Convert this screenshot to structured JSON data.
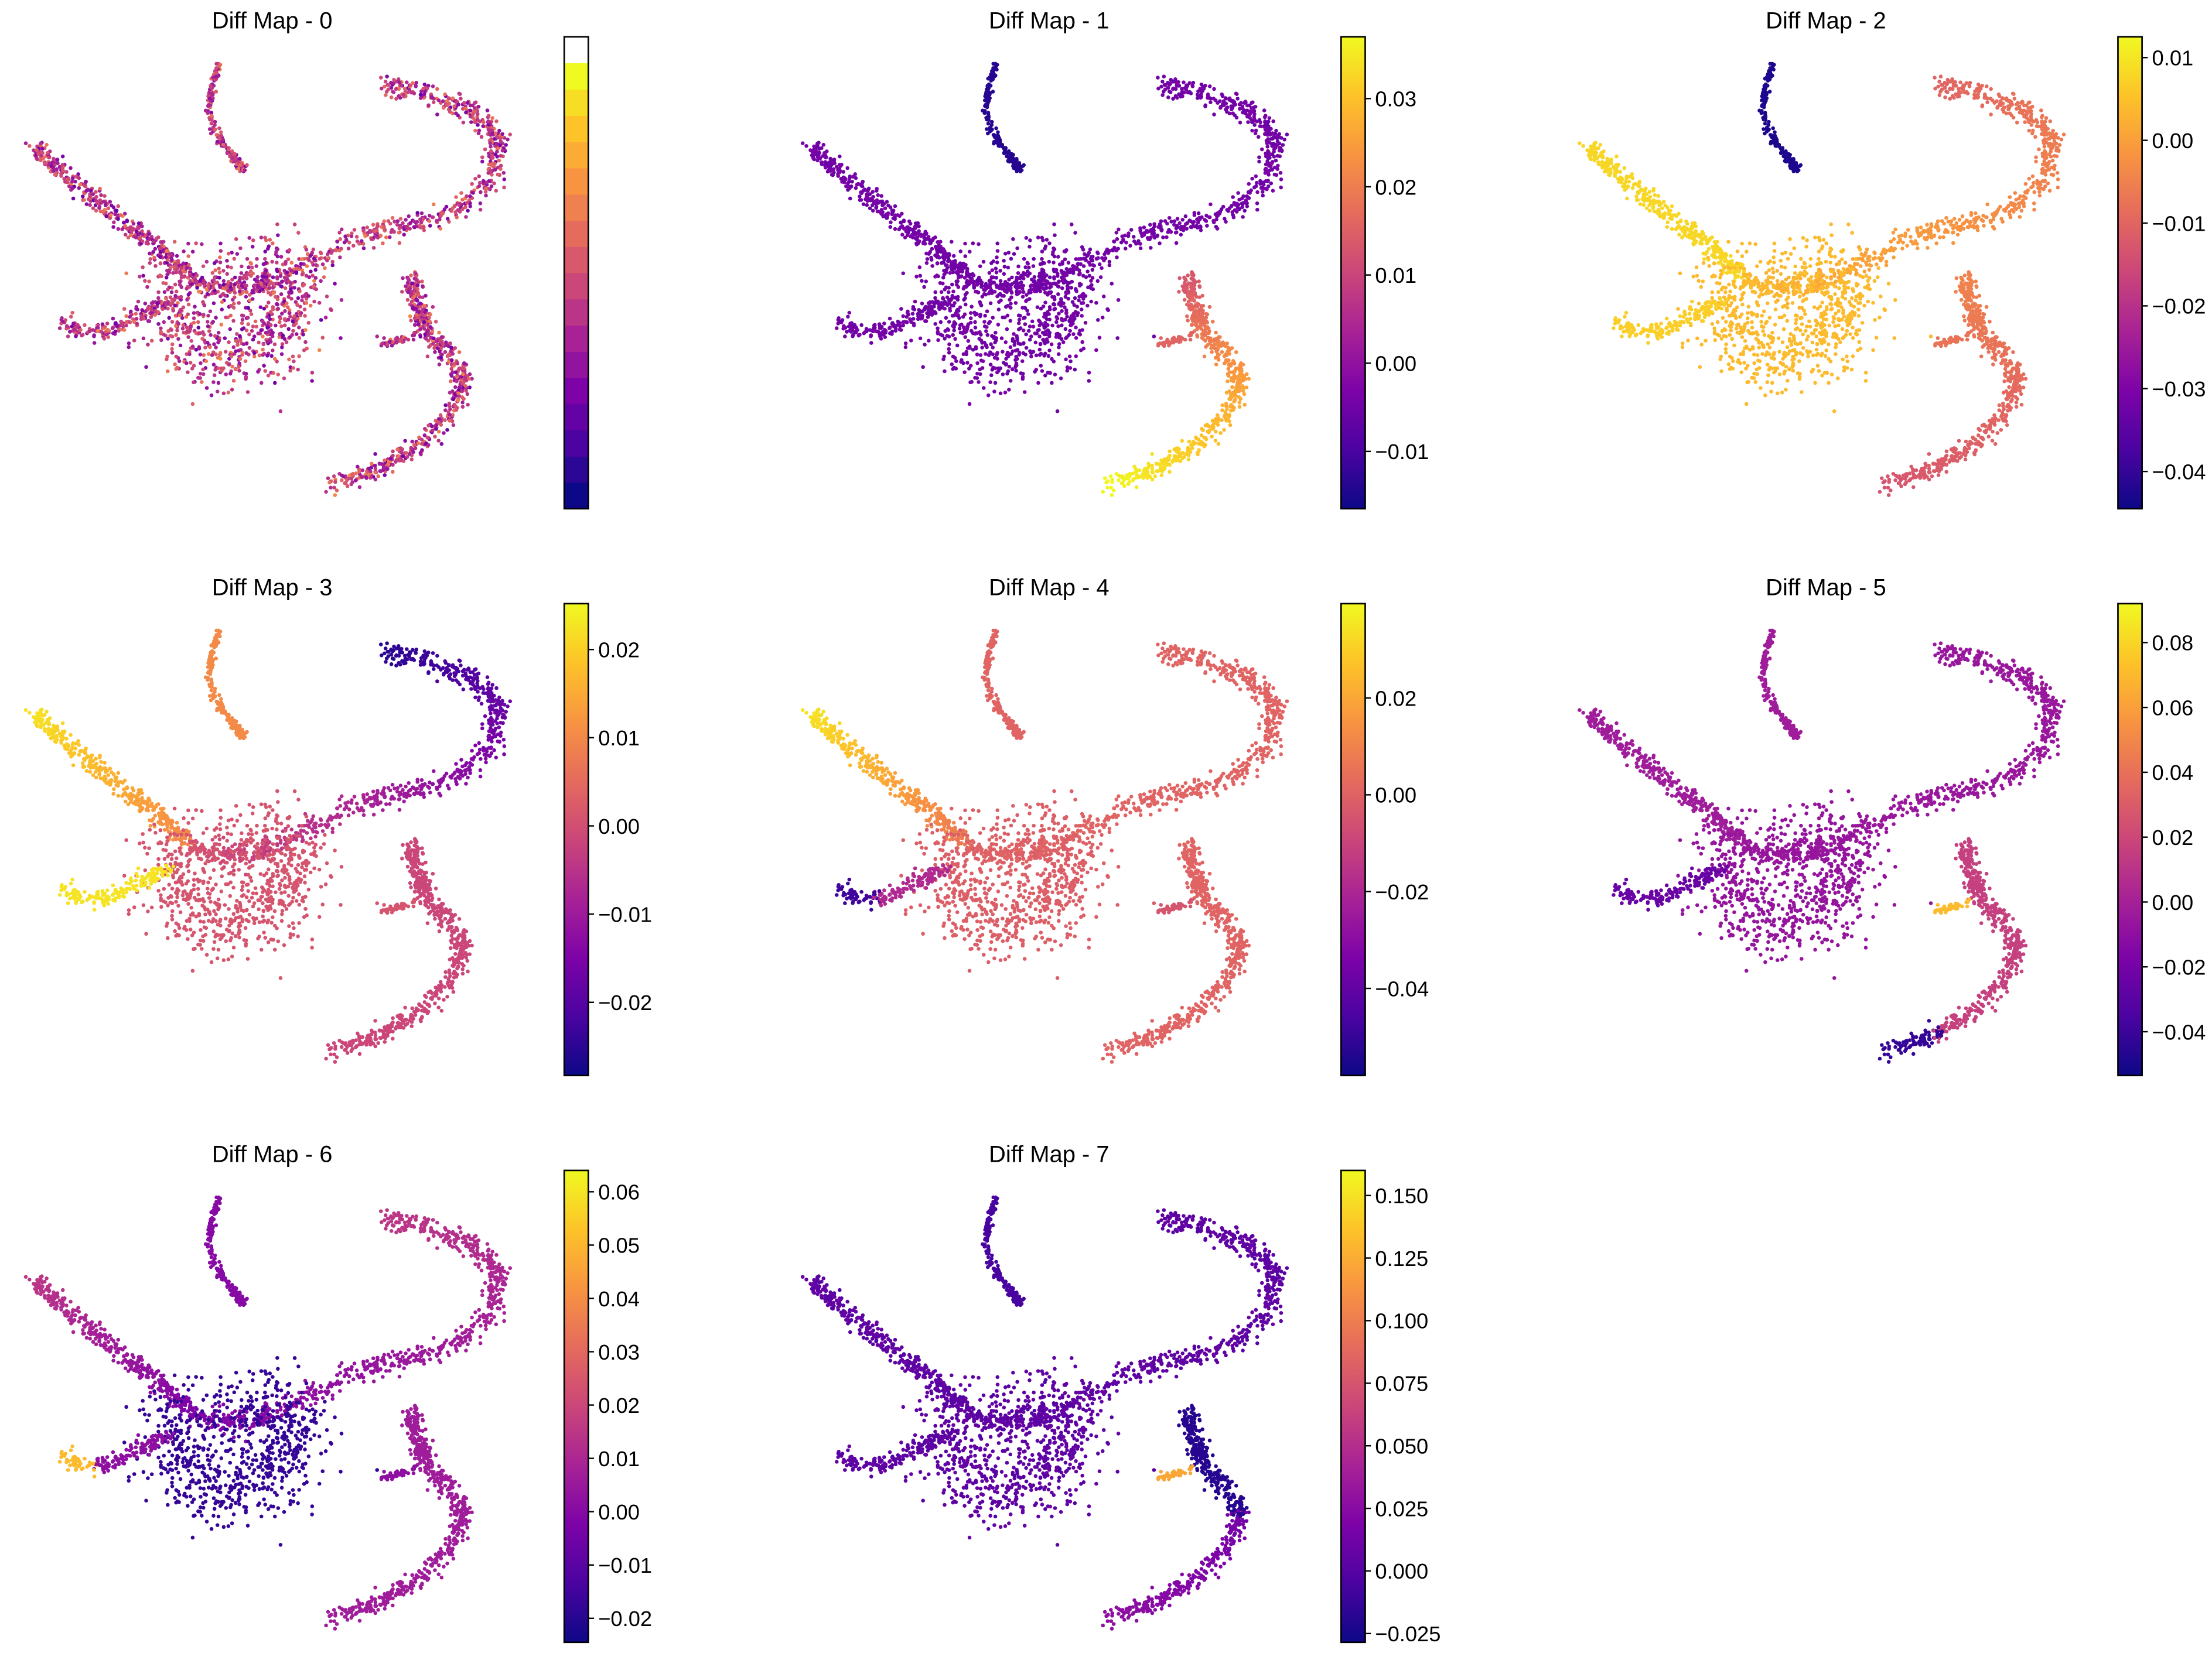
{
  "colors": {
    "background": "#ffffff",
    "colormap": "plasma",
    "point_low": "#0d0887",
    "point_high": "#f0f921"
  },
  "chart_data": [
    {
      "type": "scatter",
      "title": "Diff Map - 0",
      "colorbar": {
        "ticks": [],
        "range": [
          0,
          1
        ],
        "discrete": true
      },
      "pattern": "mixed"
    },
    {
      "type": "scatter",
      "title": "Diff Map - 1",
      "colorbar": {
        "ticks": [
          "0.03",
          "0.02",
          "0.01",
          "0.00",
          "−0.01"
        ],
        "tick_values": [
          0.03,
          0.02,
          0.01,
          0.0,
          -0.01
        ],
        "range": [
          -0.0165,
          0.037
        ]
      },
      "pattern": "d1"
    },
    {
      "type": "scatter",
      "title": "Diff Map - 2",
      "colorbar": {
        "ticks": [
          "0.01",
          "0.00",
          "−0.01",
          "−0.02",
          "−0.03",
          "−0.04"
        ],
        "tick_values": [
          0.01,
          0.0,
          -0.01,
          -0.02,
          -0.03,
          -0.04
        ],
        "range": [
          -0.0445,
          0.0125
        ]
      },
      "pattern": "d2"
    },
    {
      "type": "scatter",
      "title": "Diff Map - 3",
      "colorbar": {
        "ticks": [
          "0.02",
          "0.01",
          "0.00",
          "−0.01",
          "−0.02"
        ],
        "tick_values": [
          0.02,
          0.01,
          0.0,
          -0.01,
          -0.02
        ],
        "range": [
          -0.0283,
          0.0252
        ]
      },
      "pattern": "d3"
    },
    {
      "type": "scatter",
      "title": "Diff Map - 4",
      "colorbar": {
        "ticks": [
          "0.02",
          "0.00",
          "−0.02",
          "−0.04"
        ],
        "tick_values": [
          0.02,
          0.0,
          -0.02,
          -0.04
        ],
        "range": [
          -0.058,
          0.0395
        ]
      },
      "pattern": "d4"
    },
    {
      "type": "scatter",
      "title": "Diff Map - 5",
      "colorbar": {
        "ticks": [
          "0.08",
          "0.06",
          "0.04",
          "0.02",
          "0.00",
          "−0.02",
          "−0.04"
        ],
        "tick_values": [
          0.08,
          0.06,
          0.04,
          0.02,
          0.0,
          -0.02,
          -0.04
        ],
        "range": [
          -0.0535,
          0.092
        ]
      },
      "pattern": "d5"
    },
    {
      "type": "scatter",
      "title": "Diff Map - 6",
      "colorbar": {
        "ticks": [
          "0.06",
          "0.05",
          "0.04",
          "0.03",
          "0.02",
          "0.01",
          "0.00",
          "−0.01",
          "−0.02"
        ],
        "tick_values": [
          0.06,
          0.05,
          0.04,
          0.03,
          0.02,
          0.01,
          0.0,
          -0.01,
          -0.02
        ],
        "range": [
          -0.0245,
          0.064
        ]
      },
      "pattern": "d6"
    },
    {
      "type": "scatter",
      "title": "Diff Map - 7",
      "colorbar": {
        "ticks": [
          "0.150",
          "0.125",
          "0.100",
          "0.075",
          "0.050",
          "0.025",
          "0.000",
          "−0.025"
        ],
        "tick_values": [
          0.15,
          0.125,
          0.1,
          0.075,
          0.05,
          0.025,
          0.0,
          -0.025
        ],
        "range": [
          -0.0285,
          0.16
        ]
      },
      "pattern": "d7"
    }
  ]
}
